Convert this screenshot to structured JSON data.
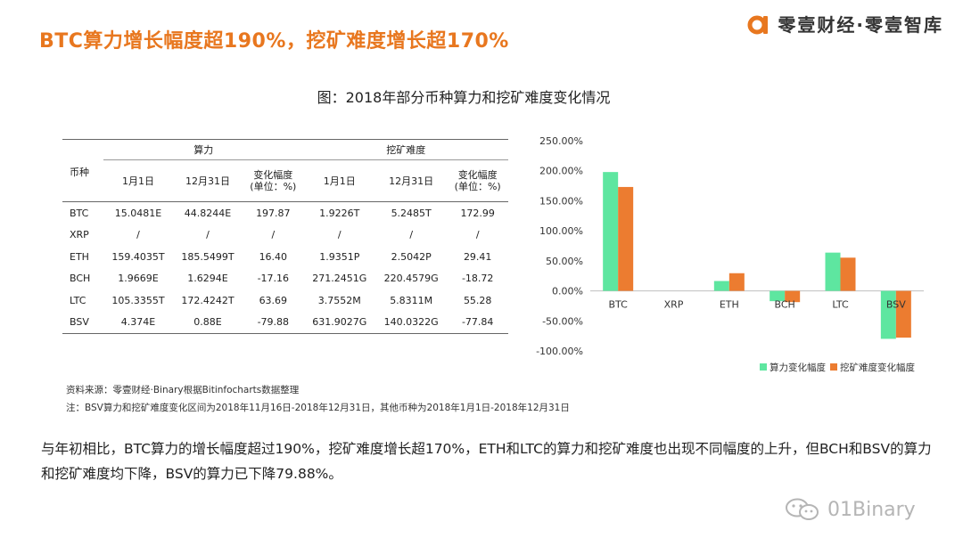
{
  "header": {
    "title": "BTC算力增长幅度超190%，挖矿难度增长超170%",
    "brand": "零壹财经·零壹智库"
  },
  "chart_title": "图：2018年部分币种算力和挖矿难度变化情况",
  "table": {
    "coin_header": "币种",
    "group_hashrate": "算力",
    "group_difficulty": "挖矿难度",
    "sub": {
      "jan1": "1月1日",
      "dec31": "12月31日",
      "change_line1": "变化幅度",
      "change_line2": "(单位：%)"
    },
    "rows": [
      {
        "coin": "BTC",
        "h_jan": "15.0481E",
        "h_dec": "44.8244E",
        "h_chg": "197.87",
        "d_jan": "1.9226T",
        "d_dec": "5.2485T",
        "d_chg": "172.99"
      },
      {
        "coin": "XRP",
        "h_jan": "/",
        "h_dec": "/",
        "h_chg": "/",
        "d_jan": "/",
        "d_dec": "/",
        "d_chg": "/"
      },
      {
        "coin": "ETH",
        "h_jan": "159.4035T",
        "h_dec": "185.5499T",
        "h_chg": "16.40",
        "d_jan": "1.9351P",
        "d_dec": "2.5042P",
        "d_chg": "29.41"
      },
      {
        "coin": "BCH",
        "h_jan": "1.9669E",
        "h_dec": "1.6294E",
        "h_chg": "-17.16",
        "d_jan": "271.2451G",
        "d_dec": "220.4579G",
        "d_chg": "-18.72"
      },
      {
        "coin": "LTC",
        "h_jan": "105.3355T",
        "h_dec": "172.4242T",
        "h_chg": "63.69",
        "d_jan": "3.7552M",
        "d_dec": "5.8311M",
        "d_chg": "55.28"
      },
      {
        "coin": "BSV",
        "h_jan": "4.374E",
        "h_dec": "0.88E",
        "h_chg": "-79.88",
        "d_jan": "631.9027G",
        "d_dec": "140.0322G",
        "d_chg": "-77.84"
      }
    ]
  },
  "notes": {
    "source": "资料来源：零壹财经·Binary根据Bitinfocharts数据整理",
    "footnote": "注：BSV算力和挖矿难度变化区间为2018年11月16日-2018年12月31日，其他币种为2018年1月1日-2018年12月31日"
  },
  "body_text": "与年初相比，BTC算力的增长幅度超过190%，挖矿难度增长超170%，ETH和LTC的算力和挖矿难度也出现不同幅度的上升，但BCH和BSV的算力和挖矿难度均下降，BSV的算力已下降79.88%。",
  "watermark": "01Binary",
  "chart_data": {
    "type": "bar",
    "categories": [
      "BTC",
      "XRP",
      "ETH",
      "BCH",
      "LTC",
      "BSV"
    ],
    "series": [
      {
        "name": "算力变化幅度",
        "values": [
          197.87,
          null,
          16.4,
          -17.16,
          63.69,
          -79.88
        ],
        "color": "#5ee6a0"
      },
      {
        "name": "挖矿难度变化幅度",
        "values": [
          172.99,
          null,
          29.41,
          -18.72,
          55.28,
          -77.84
        ],
        "color": "#ec7c30"
      }
    ],
    "ylim": [
      -100,
      250
    ],
    "yticks": [
      -100,
      -50,
      0,
      50,
      100,
      150,
      200,
      250
    ],
    "ytick_labels": [
      "-100.00%",
      "-50.00%",
      "0.00%",
      "50.00%",
      "100.00%",
      "150.00%",
      "200.00%",
      "250.00%"
    ],
    "grid": false,
    "legend": "bottom-right"
  },
  "colors": {
    "title": "#e8771f",
    "brand_logo": "#e8771f",
    "watermark": "#b5b5b5"
  }
}
